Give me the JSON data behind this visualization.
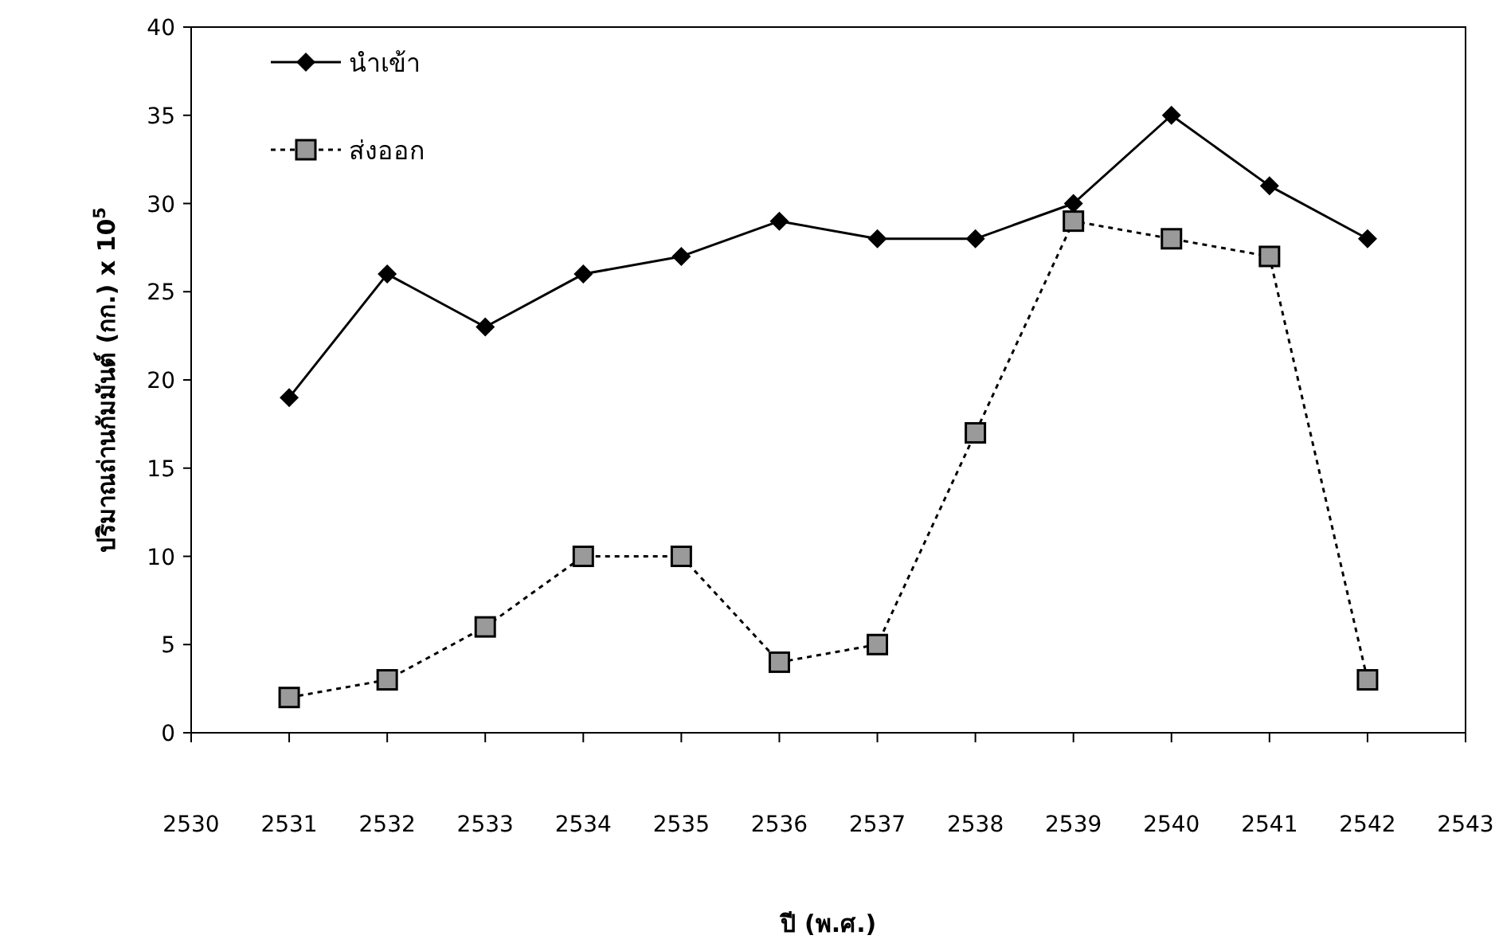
{
  "chart_data": {
    "type": "line",
    "xlabel": "ปี (พ.ศ.)",
    "ylabel": "ปริมาณถ่านกัมมันต์ (กก.) x 10$^{5}$",
    "x": [
      2531,
      2532,
      2533,
      2534,
      2535,
      2536,
      2537,
      2538,
      2539,
      2540,
      2541,
      2542
    ],
    "series": [
      {
        "name": "นำเข้า",
        "color": "#000000",
        "marker": "diamond",
        "line_style": "solid",
        "values": [
          19,
          26,
          23,
          26,
          27,
          29,
          28,
          28,
          30,
          35,
          31,
          28
        ]
      },
      {
        "name": "ส่งออก",
        "color": "#000000",
        "marker": "square",
        "line_style": "dotted",
        "values": [
          2,
          3,
          6,
          10,
          10,
          4,
          5,
          17,
          29,
          28,
          27,
          3
        ]
      }
    ],
    "xlim": [
      2530,
      2543
    ],
    "xticks": [
      2530,
      2531,
      2532,
      2533,
      2534,
      2535,
      2536,
      2537,
      2538,
      2539,
      2540,
      2541,
      2542,
      2543
    ],
    "ylim": [
      0,
      40
    ],
    "yticks": [
      0,
      5,
      10,
      15,
      20,
      25,
      30,
      35,
      40
    ],
    "grid": false,
    "legend": "top left"
  }
}
